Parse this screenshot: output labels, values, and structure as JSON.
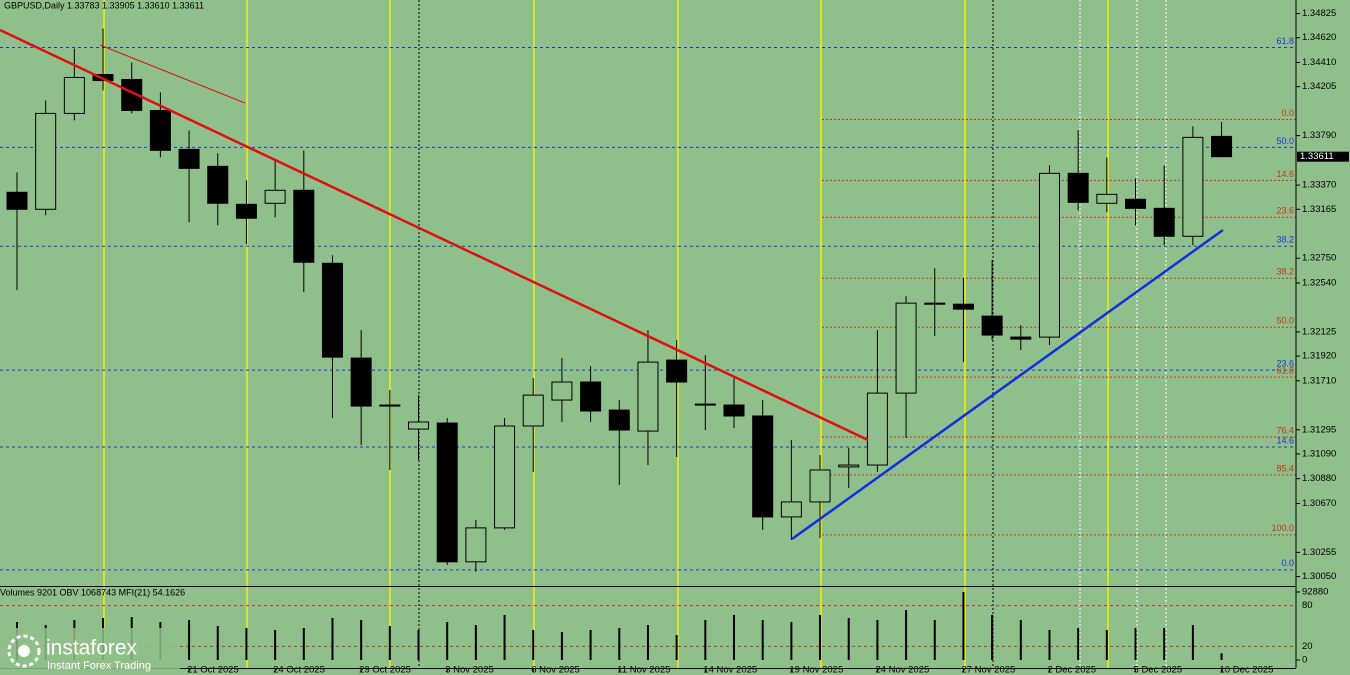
{
  "chart_data": [
    {
      "type": "candlestick",
      "title": "GBPUSD,Daily  1.33783 1.33905 1.33610 1.33611",
      "categories": [
        null,
        null,
        null,
        null,
        null,
        null,
        "21 Oct 2025",
        null,
        null,
        "24 Oct 2025",
        null,
        null,
        "29 Oct 2025",
        null,
        null,
        "3 Nov 2025",
        null,
        null,
        "6 Nov 2025",
        null,
        null,
        "11 Nov 2025",
        null,
        null,
        "14 Nov 2025",
        null,
        null,
        "19 Nov 2025",
        null,
        null,
        "24 Nov 2025",
        null,
        null,
        "27 Nov 2025",
        null,
        null,
        "2 Dec 2025",
        null,
        null,
        "5 Dec 2025",
        null,
        null,
        "10 Dec 2025"
      ],
      "open": [
        1.33309,
        1.33165,
        1.33978,
        1.34308,
        1.34266,
        1.34003,
        1.33673,
        1.33529,
        1.33207,
        1.33216,
        1.33326,
        1.32707,
        1.31903,
        1.31505,
        1.31301,
        1.31352,
        1.30175,
        1.30463,
        1.31327,
        1.31547,
        1.317,
        1.31462,
        1.31284,
        1.31886,
        1.31513,
        1.31505,
        1.31412,
        1.30556,
        1.30683,
        1.3098,
        1.30996,
        1.31606,
        1.32369,
        1.3236,
        1.32259,
        1.32081,
        1.32081,
        1.3347,
        1.33216,
        1.3325,
        1.33173,
        1.32936,
        1.33783
      ],
      "high": [
        1.33478,
        1.34088,
        1.34528,
        1.34698,
        1.3441,
        1.34156,
        1.33834,
        1.33639,
        1.3341,
        1.3358,
        1.33665,
        1.32775,
        1.3214,
        1.31632,
        1.31589,
        1.31395,
        1.30531,
        1.31395,
        1.31733,
        1.31903,
        1.31835,
        1.31547,
        1.3214,
        1.32055,
        1.31928,
        1.31733,
        1.31547,
        1.31208,
        1.31081,
        1.3114,
        1.3214,
        1.32428,
        1.32665,
        1.3258,
        1.32733,
        1.32182,
        1.33537,
        1.33834,
        1.33605,
        1.33427,
        1.33537,
        1.33868,
        1.33905
      ],
      "low": [
        1.32479,
        1.33114,
        1.33919,
        1.34173,
        1.33978,
        1.33605,
        1.33055,
        1.33029,
        1.32868,
        1.33097,
        1.32462,
        1.31395,
        1.31166,
        1.30954,
        1.31039,
        1.30149,
        1.3009,
        1.30446,
        1.30937,
        1.31361,
        1.31361,
        1.30827,
        1.30996,
        1.31064,
        1.31293,
        1.3131,
        1.30446,
        1.30361,
        1.30378,
        1.30802,
        1.30937,
        1.31225,
        1.32089,
        1.31869,
        1.32055,
        1.31971,
        1.32013,
        1.33156,
        1.33139,
        1.33029,
        1.3286,
        1.3286,
        1.3361
      ],
      "close": [
        1.33165,
        1.33978,
        1.34283,
        1.34257,
        1.34003,
        1.33665,
        1.33512,
        1.33216,
        1.33089,
        1.33326,
        1.32716,
        1.31911,
        1.31496,
        1.31496,
        1.31361,
        1.30175,
        1.30463,
        1.31327,
        1.31589,
        1.317,
        1.31454,
        1.31293,
        1.31869,
        1.317,
        1.31505,
        1.31412,
        1.30556,
        1.30683,
        1.30954,
        1.30996,
        1.31606,
        1.32369,
        1.3236,
        1.32318,
        1.32098,
        1.32064,
        1.3347,
        1.33224,
        1.33292,
        1.33173,
        1.32936,
        1.33775,
        1.33611
      ],
      "ylim": [
        1.2997,
        1.3494
      ],
      "yticks": [
        1.34825,
        {
          "value": 1.3462,
          "label": "1.34620"
        },
        {
          "value": 1.3441,
          "label": "1.34410"
        },
        1.34205,
        {
          "value": 1.3379,
          "label": "1.33790"
        },
        {
          "value": 1.3337,
          "label": "1.33370"
        },
        1.33165,
        {
          "value": 1.3275,
          "label": "1.32750"
        },
        {
          "value": 1.3254,
          "label": "1.32540"
        },
        1.32125,
        {
          "value": 1.3192,
          "label": "1.31920"
        },
        {
          "value": 1.3171,
          "label": "1.31710"
        },
        1.31295,
        {
          "value": 1.3109,
          "label": "1.31090"
        },
        {
          "value": 1.3088,
          "label": "1.30880"
        },
        {
          "value": 1.3067,
          "label": "1.30670"
        },
        1.30255,
        {
          "value": 1.3005,
          "label": "1.30050"
        }
      ],
      "fib_levels": [
        {
          "value": 1.34537,
          "label": "61.8",
          "color": "#2233dd"
        },
        {
          "value": 1.33927,
          "label": "0.0",
          "color": "#cc3322"
        },
        {
          "value": 1.3369,
          "label": "50.0",
          "color": "#2233dd"
        },
        {
          "value": 1.3341,
          "label": "14.6",
          "color": "#cc3322"
        },
        {
          "value": 1.33097,
          "label": "23.6",
          "color": "#cc3322"
        },
        {
          "value": 1.32851,
          "label": "38.2",
          "color": "#2233dd"
        },
        {
          "value": 1.3258,
          "label": "38.2",
          "color": "#cc3322"
        },
        {
          "value": 1.32165,
          "label": "50.0",
          "color": "#cc3322"
        },
        {
          "value": 1.31801,
          "label": "23.6",
          "color": "#2233dd"
        },
        {
          "value": 1.31742,
          "label": "61.8",
          "color": "#cc3322"
        },
        {
          "value": 1.31234,
          "label": "76.4",
          "color": "#cc3322"
        },
        {
          "value": 1.31149,
          "label": "14.6",
          "color": "#2233dd"
        },
        {
          "value": 1.30912,
          "label": "85.4",
          "color": "#cc3322"
        },
        {
          "value": 1.30404,
          "label": "100.0",
          "color": "#cc3322"
        },
        {
          "value": 1.30107,
          "label": "0.0",
          "color": "#2233dd"
        }
      ]
    },
    {
      "type": "bar",
      "title": "Volumes 9201  OBV 1068743  MFI(21) 54.1626",
      "values": [
        51900,
        47800,
        54600,
        57400,
        58700,
        51900,
        54600,
        46400,
        43700,
        41000,
        43700,
        57400,
        54600,
        46400,
        41000,
        51900,
        47800,
        61500,
        41000,
        38200,
        41000,
        43700,
        47800,
        34100,
        54600,
        61500,
        54600,
        51900,
        61500,
        57400,
        54600,
        68300,
        54600,
        92880,
        61500,
        54600,
        41000,
        43700,
        41000,
        43700,
        43700,
        47800,
        9201
      ],
      "color": "#000000",
      "ylim": [
        0,
        92880
      ],
      "yticks": [
        0,
        92880
      ],
      "y2lim": [
        0,
        100
      ],
      "y2ticks": [
        20,
        80
      ]
    }
  ],
  "logo": {
    "name": "instaforex",
    "tagline": "Instant Forex Trading"
  }
}
